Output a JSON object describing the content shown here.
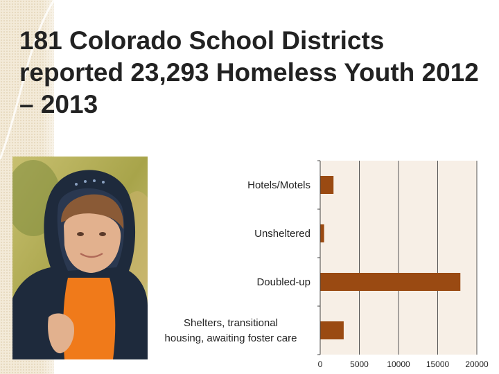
{
  "slide": {
    "title": "181 Colorado School Districts reported 23,293 Homeless Youth 2012 – 2013"
  },
  "photo": {
    "subject": "teen-in-hoodie",
    "colors": {
      "hoodie": "#1e2a3c",
      "shirt": "#f07a1a",
      "skin": "#e2b18e",
      "hair": "#8a5a36",
      "background": "#b9b25a"
    }
  },
  "chart_data": {
    "type": "bar",
    "orientation": "horizontal",
    "categories": [
      "Hotels/Motels",
      "Unsheltered",
      "Doubled-up",
      "Shelters, transitional housing, awaiting foster care"
    ],
    "category_lines": [
      [
        "Hotels/Motels"
      ],
      [
        "Unsheltered"
      ],
      [
        "Doubled-up"
      ],
      [
        "Shelters, transitional",
        "housing, awaiting foster care"
      ]
    ],
    "values": [
      1700,
      500,
      17900,
      3000
    ],
    "xlim": [
      0,
      20000
    ],
    "xticks": [
      0,
      5000,
      10000,
      15000,
      20000
    ],
    "grid": true,
    "colors": {
      "bar": "#9a4a12",
      "plot_background": "#f7efe6",
      "grid": "#555555"
    }
  }
}
